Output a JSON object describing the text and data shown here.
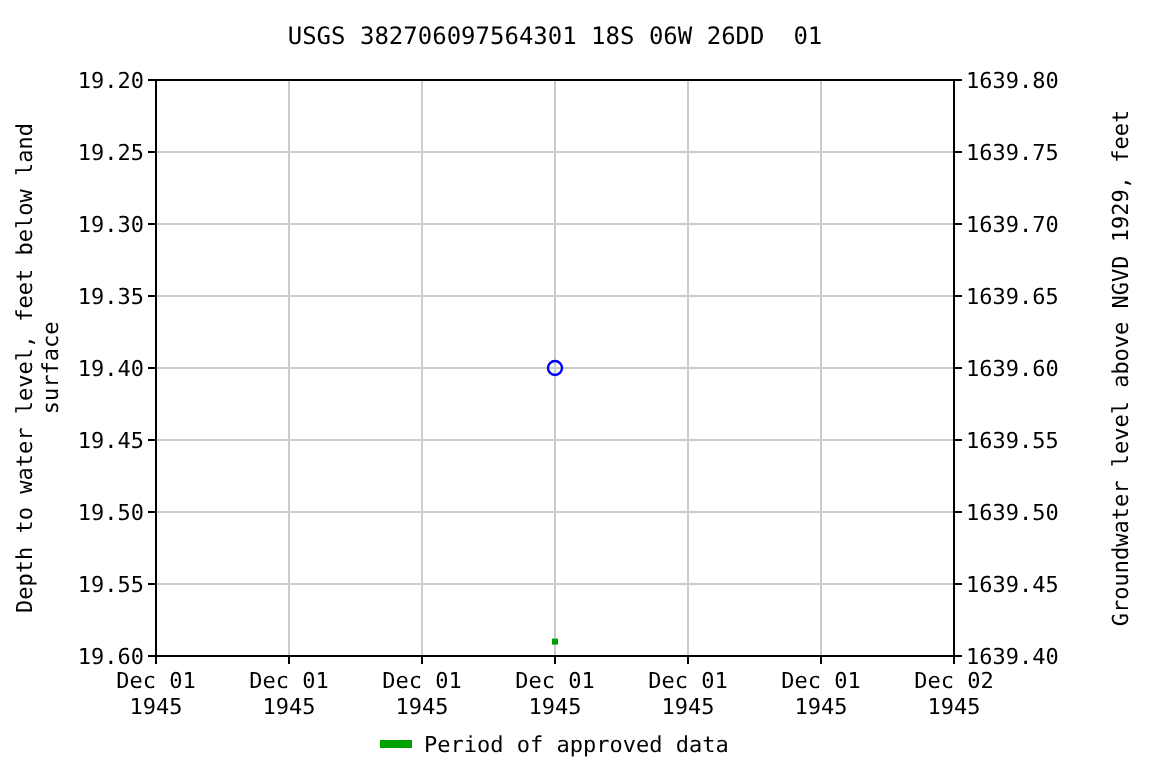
{
  "chart_data": {
    "type": "scatter",
    "title": "USGS 382706097564301 18S 06W 26DD  01",
    "ylabel": "Depth to water level, feet below land\nsurface",
    "y2label": "Groundwater level above NGVD 1929, feet",
    "xlim": [
      "1945-12-01T00:00",
      "1945-12-02T00:00"
    ],
    "xticks": [
      {
        "value": "1945-12-01T00:00",
        "label": "Dec 01\n1945"
      },
      {
        "value": "1945-12-01T04:00",
        "label": "Dec 01\n1945"
      },
      {
        "value": "1945-12-01T08:00",
        "label": "Dec 01\n1945"
      },
      {
        "value": "1945-12-01T12:00",
        "label": "Dec 01\n1945"
      },
      {
        "value": "1945-12-01T16:00",
        "label": "Dec 01\n1945"
      },
      {
        "value": "1945-12-01T20:00",
        "label": "Dec 01\n1945"
      },
      {
        "value": "1945-12-02T00:00",
        "label": "Dec 02\n1945"
      }
    ],
    "ylim": [
      19.6,
      19.2
    ],
    "yticks": [
      {
        "value": 19.2,
        "label": "19.20"
      },
      {
        "value": 19.25,
        "label": "19.25"
      },
      {
        "value": 19.3,
        "label": "19.30"
      },
      {
        "value": 19.35,
        "label": "19.35"
      },
      {
        "value": 19.4,
        "label": "19.40"
      },
      {
        "value": 19.45,
        "label": "19.45"
      },
      {
        "value": 19.5,
        "label": "19.50"
      },
      {
        "value": 19.55,
        "label": "19.55"
      },
      {
        "value": 19.6,
        "label": "19.60"
      }
    ],
    "y2lim": [
      1639.4,
      1639.8
    ],
    "y2ticks": [
      {
        "value": 1639.8,
        "label": "1639.80"
      },
      {
        "value": 1639.75,
        "label": "1639.75"
      },
      {
        "value": 1639.7,
        "label": "1639.70"
      },
      {
        "value": 1639.65,
        "label": "1639.65"
      },
      {
        "value": 1639.6,
        "label": "1639.60"
      },
      {
        "value": 1639.55,
        "label": "1639.55"
      },
      {
        "value": 1639.5,
        "label": "1639.50"
      },
      {
        "value": 1639.45,
        "label": "1639.45"
      },
      {
        "value": 1639.4,
        "label": "1639.40"
      }
    ],
    "grid": true,
    "legend": "bottom",
    "series": [
      {
        "color": "#0000ff",
        "marker": "circle",
        "x": [
          "1945-12-01T12:00"
        ],
        "values": [
          19.4
        ]
      },
      {
        "name": "Period of approved data",
        "color": "#00a000",
        "marker": "square",
        "x": [
          "1945-12-01T12:00"
        ],
        "values": [
          19.59
        ]
      }
    ]
  }
}
